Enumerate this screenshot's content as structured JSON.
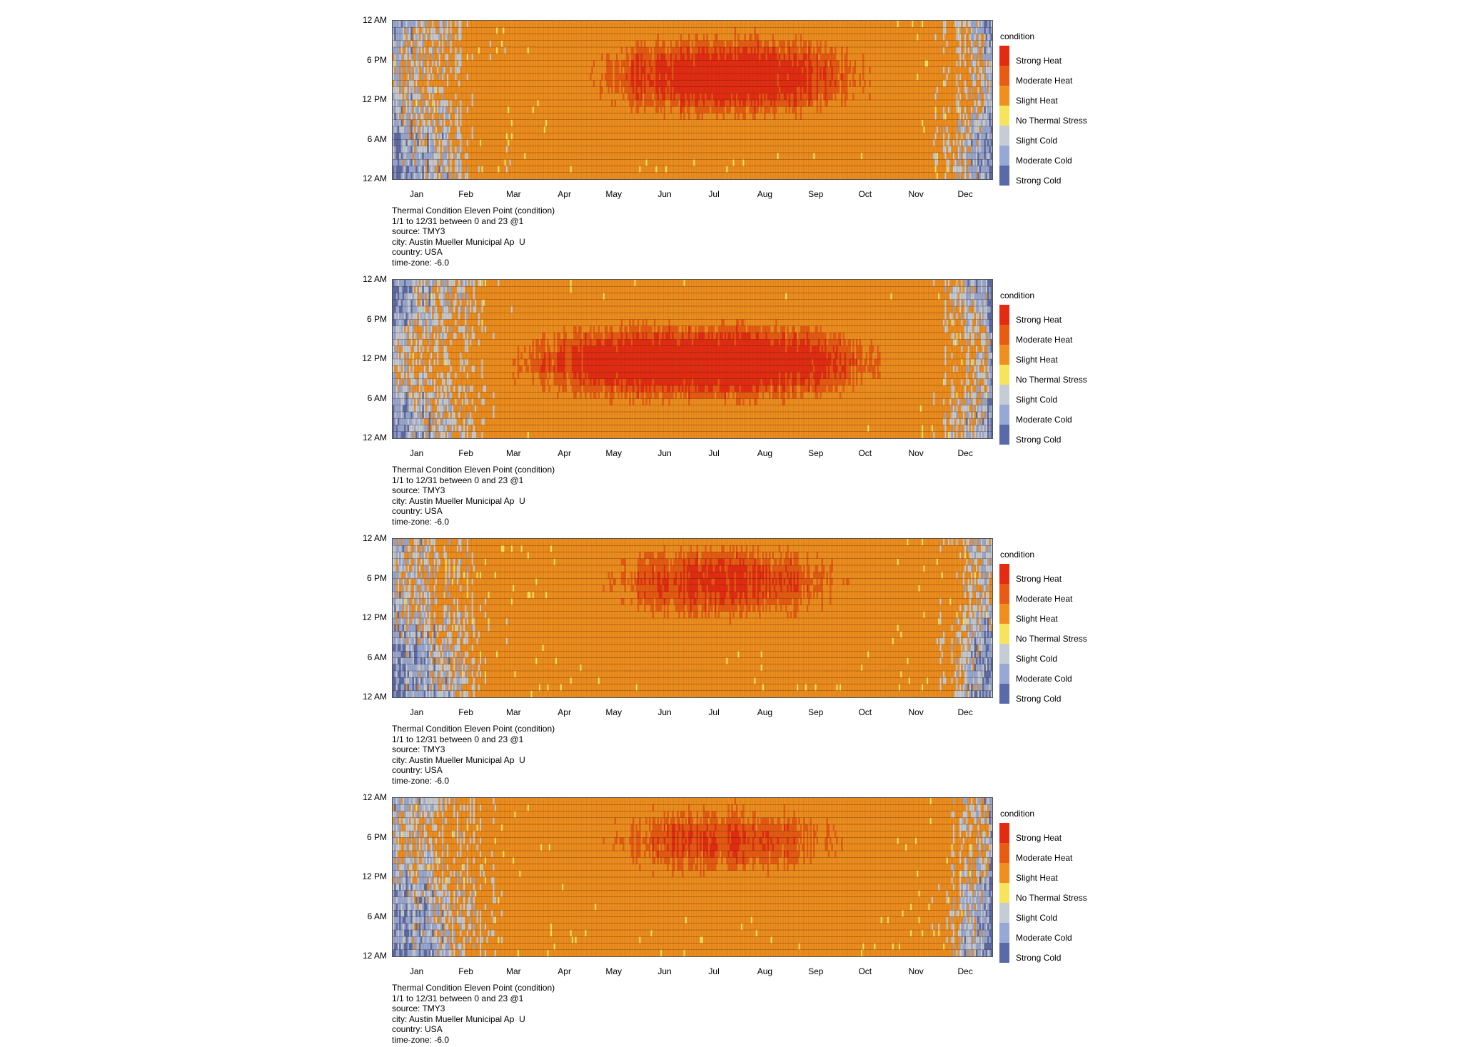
{
  "chart_data": [
    {
      "type": "heatmap",
      "title": "Thermal Condition Eleven Point (condition)",
      "info_lines": [
        "Thermal Condition Eleven Point (condition)",
        "1/1 to 12/31 between 0 and 23 @1",
        "source: TMY3",
        "city: Austin Mueller Municipal Ap  U",
        "country: USA",
        "time-zone: -6.0"
      ],
      "x_ticks": [
        "Jan",
        "Feb",
        "Mar",
        "Apr",
        "May",
        "Jun",
        "Jul",
        "Aug",
        "Sep",
        "Oct",
        "Nov",
        "Dec"
      ],
      "y_ticks": [
        "12 AM",
        "6 PM",
        "12 PM",
        "6 AM",
        "12 AM"
      ],
      "legend_title": "condition",
      "categories": [
        "Strong Heat",
        "Moderate Heat",
        "Slight Heat",
        "No Thermal Stress",
        "Slight Cold",
        "Moderate Cold",
        "Strong Cold"
      ],
      "colors": [
        "#e52a12",
        "#e95a12",
        "#f08e1e",
        "#f7e45c",
        "#c6ccd4",
        "#98a8d6",
        "#5a6aa8"
      ],
      "x_range": [
        "1/1",
        "12/31"
      ],
      "y_range": [
        0,
        23
      ],
      "peak_heat_hours": "about 10 AM to 8 PM, May to Sep",
      "dominant_condition": "Slight Heat"
    },
    {
      "type": "heatmap",
      "title": "Thermal Condition Eleven Point (condition)",
      "info_lines": [
        "Thermal Condition Eleven Point (condition)",
        "1/1 to 12/31 between 0 and 23 @1",
        "source: TMY3",
        "city: Austin Mueller Municipal Ap  U",
        "country: USA",
        "time-zone: -6.0"
      ],
      "x_ticks": [
        "Jan",
        "Feb",
        "Mar",
        "Apr",
        "May",
        "Jun",
        "Jul",
        "Aug",
        "Sep",
        "Oct",
        "Nov",
        "Dec"
      ],
      "y_ticks": [
        "12 AM",
        "6 PM",
        "12 PM",
        "6 AM",
        "12 AM"
      ],
      "legend_title": "condition",
      "categories": [
        "Strong Heat",
        "Moderate Heat",
        "Slight Heat",
        "No Thermal Stress",
        "Slight Cold",
        "Moderate Cold",
        "Strong Cold"
      ],
      "colors": [
        "#e52a12",
        "#e95a12",
        "#f08e1e",
        "#f7e45c",
        "#c6ccd4",
        "#98a8d6",
        "#5a6aa8"
      ],
      "x_range": [
        "1/1",
        "12/31"
      ],
      "y_range": [
        0,
        23
      ],
      "peak_heat_hours": "about 8 AM to 6 PM, Mar to Oct",
      "dominant_condition": "Slight Heat"
    },
    {
      "type": "heatmap",
      "title": "Thermal Condition Eleven Point (condition)",
      "info_lines": [
        "Thermal Condition Eleven Point (condition)",
        "1/1 to 12/31 between 0 and 23 @1",
        "source: TMY3",
        "city: Austin Mueller Municipal Ap  U",
        "country: USA",
        "time-zone: -6.0"
      ],
      "x_ticks": [
        "Jan",
        "Feb",
        "Mar",
        "Apr",
        "May",
        "Jun",
        "Jul",
        "Aug",
        "Sep",
        "Oct",
        "Nov",
        "Dec"
      ],
      "y_ticks": [
        "12 AM",
        "6 PM",
        "12 PM",
        "6 AM",
        "12 AM"
      ],
      "legend_title": "condition",
      "categories": [
        "Strong Heat",
        "Moderate Heat",
        "Slight Heat",
        "No Thermal Stress",
        "Slight Cold",
        "Moderate Cold",
        "Strong Cold"
      ],
      "colors": [
        "#e52a12",
        "#e95a12",
        "#f08e1e",
        "#f7e45c",
        "#c6ccd4",
        "#98a8d6",
        "#5a6aa8"
      ],
      "x_range": [
        "1/1",
        "12/31"
      ],
      "y_range": [
        0,
        23
      ],
      "peak_heat_hours": "about 12 PM to 10 PM, May to Sep",
      "dominant_condition": "Slight Heat"
    },
    {
      "type": "heatmap",
      "title": "Thermal Condition Eleven Point (condition)",
      "info_lines": [
        "Thermal Condition Eleven Point (condition)",
        "1/1 to 12/31 between 0 and 23 @1",
        "source: TMY3",
        "city: Austin Mueller Municipal Ap  U",
        "country: USA",
        "time-zone: -6.0"
      ],
      "x_ticks": [
        "Jan",
        "Feb",
        "Mar",
        "Apr",
        "May",
        "Jun",
        "Jul",
        "Aug",
        "Sep",
        "Oct",
        "Nov",
        "Dec"
      ],
      "y_ticks": [
        "12 AM",
        "6 PM",
        "12 PM",
        "6 AM",
        "12 AM"
      ],
      "legend_title": "condition",
      "categories": [
        "Strong Heat",
        "Moderate Heat",
        "Slight Heat",
        "No Thermal Stress",
        "Slight Cold",
        "Moderate Cold",
        "Strong Cold"
      ],
      "colors": [
        "#e52a12",
        "#e95a12",
        "#f08e1e",
        "#f7e45c",
        "#c6ccd4",
        "#98a8d6",
        "#5a6aa8"
      ],
      "x_range": [
        "1/1",
        "12/31"
      ],
      "y_range": [
        0,
        23
      ],
      "peak_heat_hours": "about 12 PM to 10 PM, May to Sep",
      "dominant_condition": "Slight Heat"
    }
  ]
}
